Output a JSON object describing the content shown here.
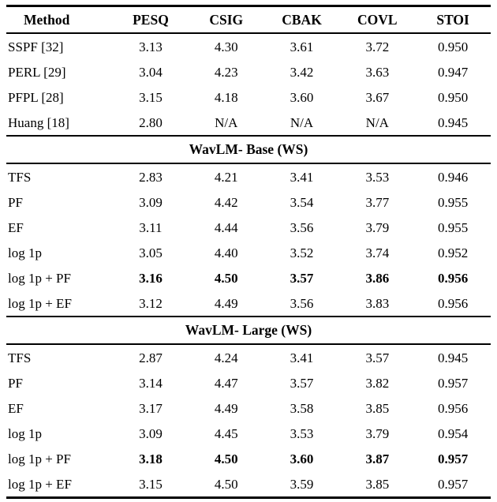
{
  "colors": {
    "text": "#000000",
    "background": "#ffffff"
  },
  "table": {
    "columns": [
      "Method",
      "PESQ",
      "CSIG",
      "CBAK",
      "COVL",
      "STOI"
    ],
    "baseline_rows": [
      {
        "method": "SSPF [32]",
        "values": [
          "3.13",
          "4.30",
          "3.61",
          "3.72",
          "0.950"
        ],
        "bold": false
      },
      {
        "method": "PERL [29]",
        "values": [
          "3.04",
          "4.23",
          "3.42",
          "3.63",
          "0.947"
        ],
        "bold": false
      },
      {
        "method": "PFPL [28]",
        "values": [
          "3.15",
          "4.18",
          "3.60",
          "3.67",
          "0.950"
        ],
        "bold": false
      },
      {
        "method": "Huang [18]",
        "values": [
          "2.80",
          "N/A",
          "N/A",
          "N/A",
          "0.945"
        ],
        "bold": false
      }
    ],
    "sections": [
      {
        "title": "WavLM- Base (WS)",
        "rows": [
          {
            "method": "TFS",
            "values": [
              "2.83",
              "4.21",
              "3.41",
              "3.53",
              "0.946"
            ],
            "bold": false
          },
          {
            "method": "PF",
            "values": [
              "3.09",
              "4.42",
              "3.54",
              "3.77",
              "0.955"
            ],
            "bold": false
          },
          {
            "method": "EF",
            "values": [
              "3.11",
              "4.44",
              "3.56",
              "3.79",
              "0.955"
            ],
            "bold": false
          },
          {
            "method": "log 1p",
            "values": [
              "3.05",
              "4.40",
              "3.52",
              "3.74",
              "0.952"
            ],
            "bold": false
          },
          {
            "method": "log 1p + PF",
            "values": [
              "3.16",
              "4.50",
              "3.57",
              "3.86",
              "0.956"
            ],
            "bold": true
          },
          {
            "method": "log 1p + EF",
            "values": [
              "3.12",
              "4.49",
              "3.56",
              "3.83",
              "0.956"
            ],
            "bold": false
          }
        ]
      },
      {
        "title": "WavLM- Large (WS)",
        "rows": [
          {
            "method": "TFS",
            "values": [
              "2.87",
              "4.24",
              "3.41",
              "3.57",
              "0.945"
            ],
            "bold": false
          },
          {
            "method": "PF",
            "values": [
              "3.14",
              "4.47",
              "3.57",
              "3.82",
              "0.957"
            ],
            "bold": false
          },
          {
            "method": "EF",
            "values": [
              "3.17",
              "4.49",
              "3.58",
              "3.85",
              "0.956"
            ],
            "bold": false
          },
          {
            "method": "log 1p",
            "values": [
              "3.09",
              "4.45",
              "3.53",
              "3.79",
              "0.954"
            ],
            "bold": false
          },
          {
            "method": "log 1p + PF",
            "values": [
              "3.18",
              "4.50",
              "3.60",
              "3.87",
              "0.957"
            ],
            "bold": true
          },
          {
            "method": "log 1p + EF",
            "values": [
              "3.15",
              "4.50",
              "3.59",
              "3.85",
              "0.957"
            ],
            "bold": false
          }
        ]
      }
    ]
  }
}
